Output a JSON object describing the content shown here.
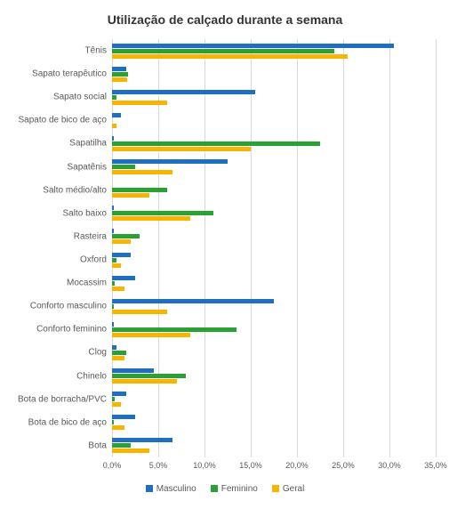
{
  "chart": {
    "type": "bar-horizontal-grouped",
    "title": "Utilização de calçado durante a semana",
    "title_fontsize": 14,
    "title_color": "#333333",
    "background_color": "#ffffff",
    "grid_color": "#d9d9d9",
    "label_color": "#595959",
    "label_fontsize": 10,
    "tick_fontsize": 9,
    "x_min": 0,
    "x_max": 35,
    "x_tick_step": 5,
    "x_tick_labels": [
      "0,0%",
      "5,0%",
      "10,0%",
      "15,0%",
      "20,0%",
      "25,0%",
      "30,0%",
      "35,0%"
    ],
    "series": [
      {
        "name": "Masculino",
        "color": "#1f6fc1"
      },
      {
        "name": "Feminino",
        "color": "#2aa233"
      },
      {
        "name": "Geral",
        "color": "#f7b500"
      }
    ],
    "categories": [
      {
        "label": "Tênis",
        "values": [
          30.5,
          24.0,
          25.5
        ]
      },
      {
        "label": "Sapato terapêutico",
        "values": [
          1.5,
          1.7,
          1.6
        ]
      },
      {
        "label": "Sapato social",
        "values": [
          15.5,
          0.5,
          6.0
        ]
      },
      {
        "label": "Sapato de bico de aço",
        "values": [
          1.0,
          0.0,
          0.5
        ]
      },
      {
        "label": "Sapatilha",
        "values": [
          0.2,
          22.5,
          15.0
        ]
      },
      {
        "label": "Sapatênis",
        "values": [
          12.5,
          2.5,
          6.5
        ]
      },
      {
        "label": "Salto médio/alto",
        "values": [
          0.0,
          6.0,
          4.0
        ]
      },
      {
        "label": "Salto baixo",
        "values": [
          0.2,
          11.0,
          8.5
        ]
      },
      {
        "label": "Rasteira",
        "values": [
          0.2,
          3.0,
          2.0
        ]
      },
      {
        "label": "Oxford",
        "values": [
          2.0,
          0.5,
          1.0
        ]
      },
      {
        "label": "Mocassim",
        "values": [
          2.5,
          0.3,
          1.3
        ]
      },
      {
        "label": "Conforto masculino",
        "values": [
          17.5,
          0.2,
          6.0
        ]
      },
      {
        "label": "Conforto feminino",
        "values": [
          0.2,
          13.5,
          8.5
        ]
      },
      {
        "label": "Clog",
        "values": [
          0.5,
          1.5,
          1.3
        ]
      },
      {
        "label": "Chinelo",
        "values": [
          4.5,
          8.0,
          7.0
        ]
      },
      {
        "label": "Bota de borracha/PVC",
        "values": [
          1.5,
          0.3,
          1.0
        ]
      },
      {
        "label": "Bota de bico de aço",
        "values": [
          2.5,
          0.2,
          1.3
        ]
      },
      {
        "label": "Bota",
        "values": [
          6.5,
          2.0,
          4.0
        ]
      }
    ],
    "legend_position": "bottom"
  }
}
